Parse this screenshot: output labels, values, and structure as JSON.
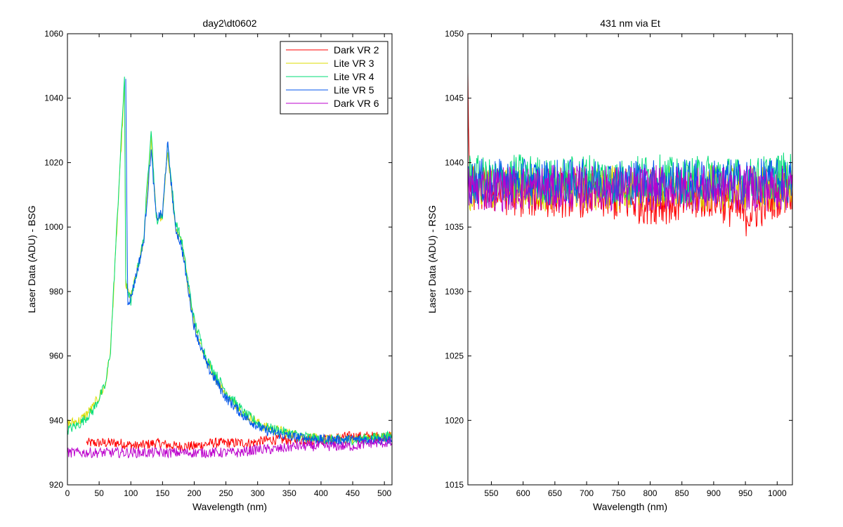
{
  "chart_data": [
    {
      "type": "line",
      "title": "day2\\dt0602",
      "xlabel": "Wavelength (nm)",
      "ylabel": "Laser Data (ADU) - BSG",
      "xlim": [
        0,
        512
      ],
      "ylim": [
        920,
        1060
      ],
      "xticks": [
        0,
        50,
        100,
        150,
        200,
        250,
        300,
        350,
        400,
        450,
        500
      ],
      "yticks": [
        920,
        940,
        960,
        980,
        1000,
        1020,
        1040,
        1060
      ],
      "legend_position": "top-right",
      "series": [
        {
          "name": "Dark VR 2",
          "color": "#ff0000",
          "x": [
            30,
            50,
            80,
            110,
            140,
            170,
            200,
            230,
            260,
            290,
            320,
            350,
            380,
            410,
            440,
            470,
            500,
            512
          ],
          "y": [
            933,
            933,
            933,
            932,
            933,
            932,
            932,
            933,
            933,
            933,
            934,
            934,
            934,
            934,
            935,
            935,
            935,
            935
          ]
        },
        {
          "name": "Lite VR 3",
          "color": "#dddd00",
          "x": [
            0,
            20,
            40,
            60,
            68,
            90,
            92,
            100,
            120,
            132,
            140,
            150,
            158,
            170,
            180,
            200,
            220,
            250,
            280,
            310,
            350,
            400,
            450,
            500,
            512
          ],
          "y": [
            939,
            940,
            944,
            951,
            962,
            1044,
            982,
            978,
            995,
            1028,
            1003,
            1003,
            1024,
            1000,
            995,
            970,
            958,
            948,
            942,
            938,
            936,
            934,
            934,
            935,
            935
          ]
        },
        {
          "name": "Lite VR 4",
          "color": "#00dd77",
          "x": [
            0,
            20,
            40,
            60,
            68,
            90,
            92,
            100,
            120,
            132,
            140,
            150,
            158,
            170,
            180,
            200,
            220,
            250,
            280,
            310,
            350,
            400,
            450,
            500,
            512
          ],
          "y": [
            937,
            939,
            943,
            951,
            962,
            1047,
            983,
            977,
            996,
            1031,
            1002,
            1004,
            1026,
            1002,
            996,
            971,
            959,
            949,
            942,
            938,
            936,
            934,
            934,
            935,
            935
          ]
        },
        {
          "name": "Lite VR 5",
          "color": "#0055ee",
          "x": [
            92,
            95,
            100,
            120,
            132,
            140,
            150,
            158,
            170,
            180,
            200,
            220,
            250,
            280,
            310,
            350,
            400,
            450,
            500,
            512
          ],
          "y": [
            1046,
            977,
            978,
            995,
            1024,
            1003,
            1004,
            1026,
            1000,
            994,
            969,
            957,
            947,
            941,
            937,
            935,
            934,
            934,
            934,
            934
          ]
        },
        {
          "name": "Dark VR 6",
          "color": "#bb00cc",
          "x": [
            0,
            30,
            60,
            90,
            120,
            150,
            180,
            210,
            240,
            270,
            300,
            330,
            360,
            390,
            420,
            450,
            480,
            512
          ],
          "y": [
            930,
            930,
            930,
            930,
            930,
            930,
            930,
            930,
            930,
            930,
            931,
            931,
            932,
            932,
            932,
            932,
            933,
            933
          ]
        }
      ]
    },
    {
      "type": "line",
      "title": "431 nm via Et",
      "xlabel": "Wavelength (nm)",
      "ylabel": "Laser Data (ADU) - RSG",
      "xlim": [
        513,
        1024
      ],
      "ylim": [
        1015,
        1050
      ],
      "xticks": [
        550,
        600,
        650,
        700,
        750,
        800,
        850,
        900,
        950,
        1000
      ],
      "yticks": [
        1015,
        1020,
        1025,
        1030,
        1035,
        1040,
        1045,
        1050
      ],
      "series": [
        {
          "name": "Dark VR 2",
          "color": "#ff0000",
          "x": [
            513,
            515,
            520,
            600,
            700,
            780,
            850,
            900,
            950,
            1000,
            1024
          ],
          "y": [
            1047,
            1039,
            1038,
            1037.5,
            1037.5,
            1037,
            1037,
            1037.5,
            1036,
            1037.5,
            1038
          ]
        },
        {
          "name": "Lite VR 3",
          "color": "#dddd00",
          "x": [
            513,
            550,
            600,
            650,
            700,
            750,
            800,
            850,
            900,
            950,
            1000,
            1024
          ],
          "y": [
            1038,
            1038,
            1038,
            1038,
            1038,
            1038,
            1038,
            1038,
            1038,
            1038,
            1038,
            1038
          ]
        },
        {
          "name": "Lite VR 4",
          "color": "#00dd77",
          "x": [
            513,
            550,
            600,
            650,
            700,
            750,
            800,
            850,
            900,
            950,
            1000,
            1024
          ],
          "y": [
            1039,
            1038.5,
            1039,
            1038.5,
            1039,
            1038.5,
            1039,
            1038.5,
            1039,
            1038.5,
            1039,
            1039
          ]
        },
        {
          "name": "Lite VR 5",
          "color": "#0055ee",
          "x": [
            513,
            550,
            600,
            650,
            700,
            750,
            800,
            850,
            900,
            950,
            1000,
            1024
          ],
          "y": [
            1038.5,
            1038.5,
            1038.5,
            1038.5,
            1038.5,
            1038.5,
            1038.5,
            1038.5,
            1038.5,
            1038.5,
            1038.5,
            1038.5
          ]
        },
        {
          "name": "Dark VR 6",
          "color": "#bb00cc",
          "x": [
            513,
            550,
            600,
            650,
            700,
            750,
            800,
            850,
            900,
            950,
            1000,
            1024
          ],
          "y": [
            1038,
            1038,
            1038,
            1038,
            1038,
            1038,
            1038,
            1038,
            1038,
            1038,
            1038,
            1038
          ]
        }
      ]
    }
  ]
}
